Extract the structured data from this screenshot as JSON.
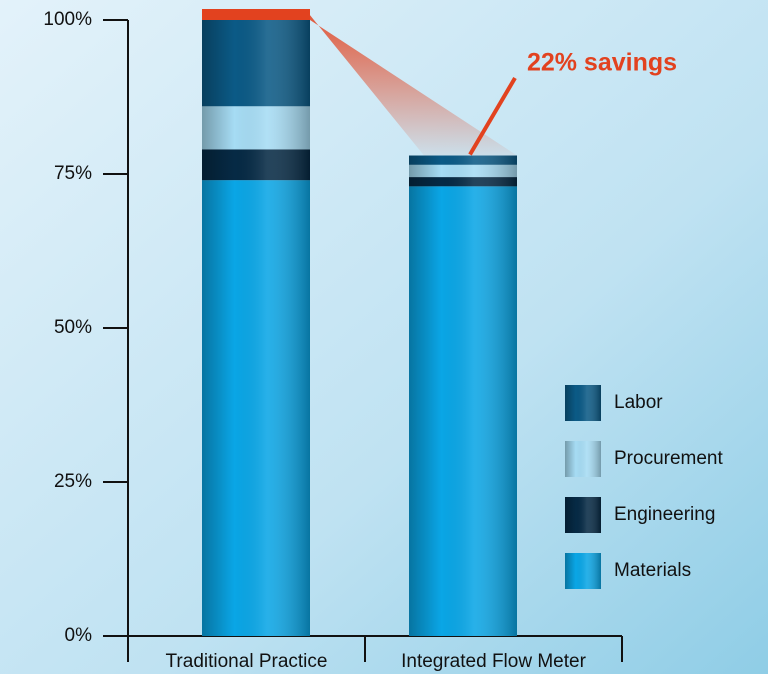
{
  "chart_data": {
    "type": "stacked_bar",
    "categories": [
      "Traditional Practice",
      "Integrated Flow Meter"
    ],
    "series": [
      {
        "name": "Materials",
        "color": "#0aa6e6",
        "values": [
          74,
          73
        ]
      },
      {
        "name": "Engineering",
        "color": "#062a45",
        "values": [
          5,
          1.5
        ]
      },
      {
        "name": "Procurement",
        "color": "#a6dcf4",
        "values": [
          7,
          2
        ]
      },
      {
        "name": "Labor",
        "color": "#0b5a86",
        "values": [
          14,
          1.5
        ]
      }
    ],
    "ylim": [
      0,
      100
    ],
    "yticks": [
      {
        "value": 0,
        "label": "0%"
      },
      {
        "value": 25,
        "label": "25%"
      },
      {
        "value": 50,
        "label": "50%"
      },
      {
        "value": 75,
        "label": "75%"
      },
      {
        "value": 100,
        "label": "100%"
      }
    ],
    "annotation": "22% savings",
    "annotation_color": "#e2421f"
  }
}
